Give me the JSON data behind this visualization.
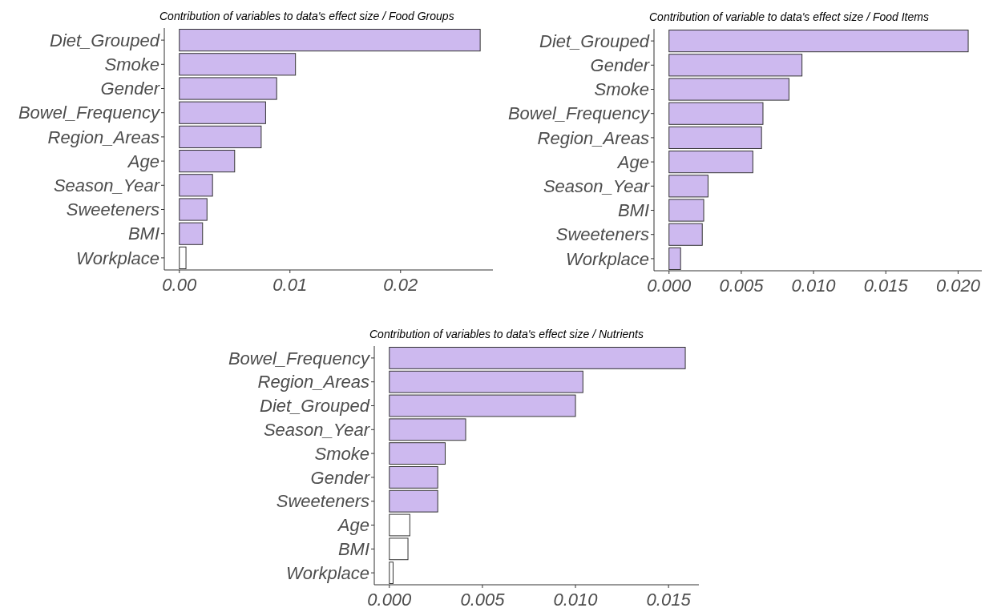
{
  "chart_data": [
    {
      "type": "bar",
      "orientation": "horizontal",
      "title": "Contribution of variables to data's effect size / Food Groups",
      "categories": [
        "Diet_Grouped",
        "Smoke",
        "Gender",
        "Bowel_Frequency",
        "Region_Areas",
        "Age",
        "Season_Year",
        "Sweeteners",
        "BMI",
        "Workplace"
      ],
      "values": [
        0.0272,
        0.0105,
        0.0088,
        0.0078,
        0.0074,
        0.005,
        0.003,
        0.0025,
        0.0021,
        0.0006
      ],
      "colors": [
        "#cdb9ef",
        "#cdb9ef",
        "#cdb9ef",
        "#cdb9ef",
        "#cdb9ef",
        "#cdb9ef",
        "#cdb9ef",
        "#cdb9ef",
        "#cdb9ef",
        "#ffffff"
      ],
      "xlim": [
        -0.00136,
        0.02835
      ],
      "xticks": [
        {
          "value": 0,
          "label": "0.00"
        },
        0.01,
        0.02
      ]
    },
    {
      "type": "bar",
      "orientation": "horizontal",
      "title": "Contribution of variable to data's effect size / Food Items",
      "categories": [
        "Diet_Grouped",
        "Gender",
        "Smoke",
        "Bowel_Frequency",
        "Region_Areas",
        "Age",
        "Season_Year",
        "BMI",
        "Sweeteners",
        "Workplace"
      ],
      "values": [
        0.0207,
        0.0092,
        0.0083,
        0.0065,
        0.0064,
        0.0058,
        0.0027,
        0.0024,
        0.0023,
        0.0008
      ],
      "colors": [
        "#cdb9ef",
        "#cdb9ef",
        "#cdb9ef",
        "#cdb9ef",
        "#cdb9ef",
        "#cdb9ef",
        "#cdb9ef",
        "#cdb9ef",
        "#cdb9ef",
        "#cdb9ef"
      ],
      "xlim": [
        -0.00104,
        0.02164
      ],
      "xticks": [
        {
          "value": 0,
          "label": "0.000"
        },
        0.005,
        {
          "value": 0.01,
          "label": "0.010"
        },
        0.015,
        {
          "value": 0.02,
          "label": "0.020"
        }
      ]
    },
    {
      "type": "bar",
      "orientation": "horizontal",
      "title": "Contribution of variables to data's effect size / Nutrients",
      "categories": [
        "Bowel_Frequency",
        "Region_Areas",
        "Diet_Grouped",
        "Season_Year",
        "Smoke",
        "Gender",
        "Sweeteners",
        "Age",
        "BMI",
        "Workplace"
      ],
      "values": [
        0.0159,
        0.0104,
        0.01,
        0.0041,
        0.003,
        0.0026,
        0.0026,
        0.0011,
        0.001,
        0.0002
      ],
      "colors": [
        "#cdb9ef",
        "#cdb9ef",
        "#cdb9ef",
        "#cdb9ef",
        "#cdb9ef",
        "#cdb9ef",
        "#cdb9ef",
        "#ffffff",
        "#ffffff",
        "#ffffff"
      ],
      "xlim": [
        -0.00081,
        0.01663
      ],
      "xticks": [
        {
          "value": 0,
          "label": "0.000"
        },
        0.005,
        {
          "value": 0.01,
          "label": "0.010"
        },
        0.015
      ]
    }
  ]
}
